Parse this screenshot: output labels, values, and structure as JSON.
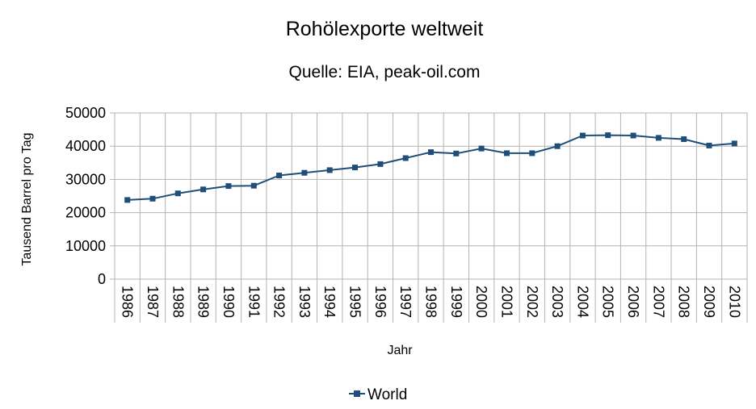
{
  "chart_data": {
    "type": "line",
    "title": "Rohölexporte weltweit",
    "subtitle": "Quelle: EIA, peak-oil.com",
    "xlabel": "Jahr",
    "ylabel": "Tausend Barrel pro Tag",
    "categories": [
      "1986",
      "1987",
      "1988",
      "1989",
      "1990",
      "1991",
      "1992",
      "1993",
      "1994",
      "1995",
      "1996",
      "1997",
      "1998",
      "1999",
      "2000",
      "2001",
      "2002",
      "2003",
      "2004",
      "2005",
      "2006",
      "2007",
      "2008",
      "2009",
      "2010"
    ],
    "series": [
      {
        "name": "World",
        "color": "#1f4e79",
        "values": [
          23800,
          24200,
          25800,
          27000,
          28000,
          28100,
          31200,
          32000,
          32800,
          33600,
          34600,
          36400,
          38200,
          37800,
          39300,
          37900,
          37900,
          40000,
          43200,
          43300,
          43200,
          42500,
          42100,
          40200,
          40800
        ]
      }
    ],
    "ylim": [
      0,
      50000
    ],
    "yticks": [
      0,
      10000,
      20000,
      30000,
      40000,
      50000
    ],
    "grid": true,
    "legend_position": "bottom",
    "marker": "square"
  }
}
